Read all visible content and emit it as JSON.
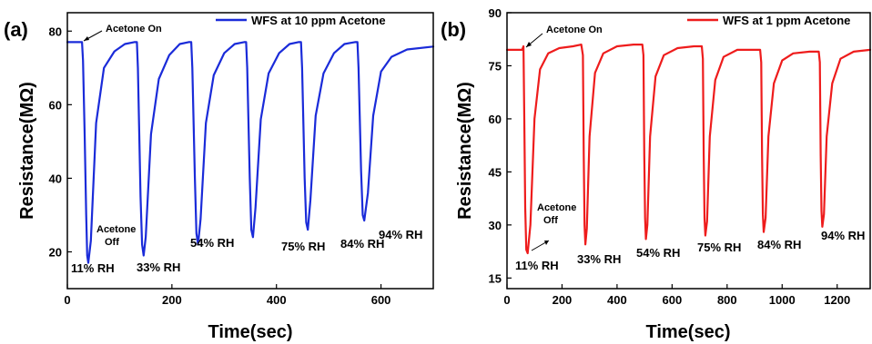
{
  "chart_data": [
    {
      "panel_label": "(a)",
      "type": "line",
      "xlabel": "Time(sec)",
      "ylabel": "Resistance(MΩ)",
      "xlim": [
        0,
        700
      ],
      "ylim": [
        10,
        85
      ],
      "xticks": [
        0,
        200,
        400,
        600
      ],
      "yticks": [
        20,
        40,
        60,
        80
      ],
      "grid": false,
      "legend_position": "top-right",
      "series": [
        {
          "name": "WFS at 10 ppm Acetone",
          "color": "#1a2bd9",
          "x": [
            0,
            28,
            30,
            33,
            36,
            38,
            40,
            45,
            55,
            70,
            90,
            110,
            128,
            133,
            135,
            140,
            143,
            146,
            150,
            160,
            175,
            195,
            215,
            232,
            237,
            239,
            244,
            247,
            250,
            255,
            265,
            280,
            300,
            320,
            338,
            342,
            344,
            349,
            352,
            355,
            360,
            370,
            385,
            405,
            425,
            442,
            447,
            449,
            454,
            457,
            460,
            465,
            475,
            490,
            510,
            530,
            550,
            555,
            557,
            562,
            565,
            568,
            575,
            585,
            600,
            620,
            650,
            700
          ],
          "y": [
            77.0,
            77.0,
            72.0,
            52.0,
            30.0,
            19.0,
            17.0,
            23.0,
            55.0,
            70.0,
            74.5,
            76.5,
            77.0,
            77.0,
            70.0,
            35.0,
            22.0,
            19.0,
            24.0,
            52.0,
            67.0,
            73.5,
            76.5,
            77.0,
            77.0,
            70.0,
            40.0,
            25.0,
            22.0,
            29.0,
            55.0,
            68.0,
            74.0,
            76.5,
            77.0,
            77.0,
            70.0,
            40.0,
            26.0,
            24.0,
            32.0,
            56.0,
            68.5,
            74.0,
            76.5,
            77.0,
            77.0,
            70.0,
            40.0,
            28.0,
            26.0,
            34.0,
            57.0,
            68.5,
            74.0,
            76.5,
            77.0,
            77.0,
            70.0,
            42.0,
            30.0,
            28.5,
            36.0,
            57.0,
            69.0,
            73.0,
            75.0,
            75.8
          ]
        }
      ],
      "annotations": {
        "acetone_on": "Acetone On",
        "acetone_off_1": "Acetone",
        "acetone_off_2": "Off",
        "rh": [
          "11% RH",
          "33% RH",
          "54% RH",
          "75% RH",
          "84% RH",
          "94% RH"
        ]
      }
    },
    {
      "panel_label": "(b)",
      "type": "line",
      "xlabel": "Time(sec)",
      "ylabel": "Resistance(MΩ)",
      "xlim": [
        0,
        1320
      ],
      "ylim": [
        12,
        90
      ],
      "xticks": [
        0,
        200,
        400,
        600,
        800,
        1000,
        1200
      ],
      "yticks": [
        15,
        30,
        45,
        60,
        75,
        90
      ],
      "grid": false,
      "legend_position": "top-right",
      "series": [
        {
          "name": "WFS at 1 ppm Acetone",
          "color": "#ee1c1c",
          "x": [
            0,
            55,
            60,
            63,
            66,
            70,
            75,
            85,
            100,
            120,
            150,
            190,
            240,
            270,
            276,
            279,
            282,
            285,
            290,
            300,
            320,
            350,
            400,
            460,
            492,
            496,
            499,
            502,
            505,
            510,
            520,
            540,
            570,
            620,
            680,
            708,
            712,
            715,
            718,
            721,
            727,
            737,
            757,
            787,
            837,
            897,
            920,
            924,
            927,
            930,
            933,
            940,
            950,
            970,
            1000,
            1040,
            1100,
            1133,
            1137,
            1140,
            1143,
            1146,
            1152,
            1162,
            1182,
            1212,
            1260,
            1320
          ],
          "y": [
            79.5,
            79.5,
            80.5,
            60.0,
            35.0,
            23.0,
            22.0,
            30.0,
            60.0,
            74.0,
            78.5,
            80.0,
            80.5,
            81.0,
            78.0,
            50.0,
            30.0,
            24.5,
            29.0,
            55.0,
            73.0,
            78.5,
            80.5,
            81.0,
            81.0,
            78.0,
            50.0,
            32.0,
            26.0,
            30.0,
            55.0,
            72.0,
            78.0,
            80.0,
            80.5,
            80.5,
            77.0,
            50.0,
            32.0,
            27.0,
            31.0,
            55.0,
            71.0,
            77.5,
            79.5,
            79.5,
            79.5,
            76.0,
            50.0,
            33.0,
            28.0,
            32.0,
            55.0,
            70.0,
            76.5,
            78.5,
            79.0,
            79.0,
            76.0,
            50.0,
            34.0,
            29.5,
            33.0,
            55.0,
            70.0,
            77.0,
            79.0,
            79.5
          ]
        }
      ],
      "annotations": {
        "acetone_on": "Acetone On",
        "acetone_off_1": "Acetone",
        "acetone_off_2": "Off",
        "rh": [
          "11% RH",
          "33% RH",
          "54% RH",
          "75% RH",
          "84% RH",
          "94% RH"
        ]
      }
    }
  ]
}
